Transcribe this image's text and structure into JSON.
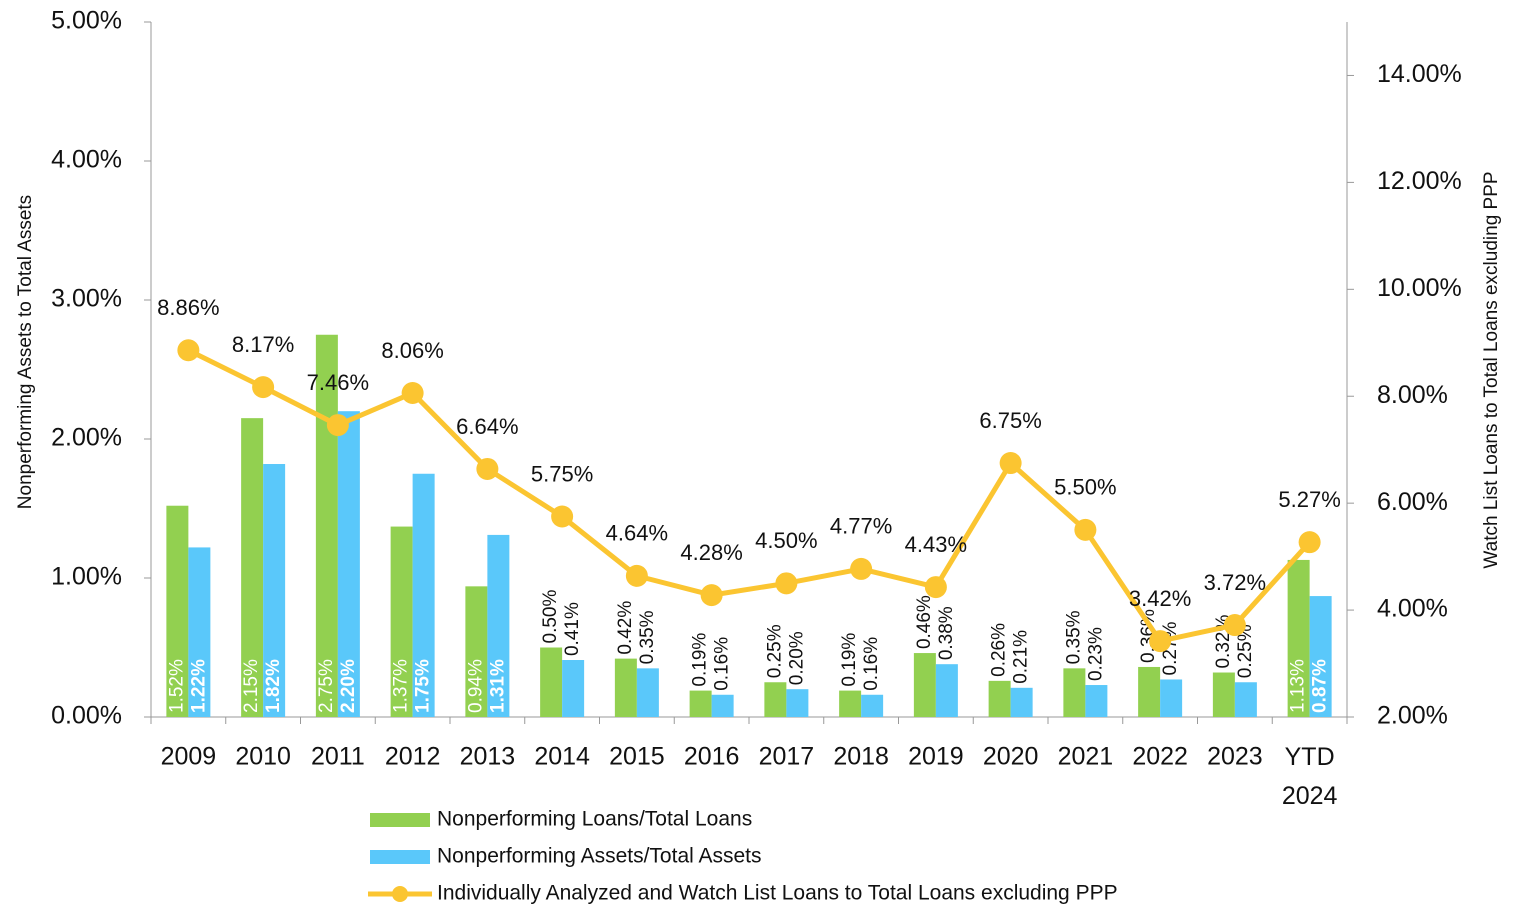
{
  "chart_data": {
    "type": "bar",
    "categories": [
      "2009",
      "2010",
      "2011",
      "2012",
      "2013",
      "2014",
      "2015",
      "2016",
      "2017",
      "2018",
      "2019",
      "2020",
      "2021",
      "2022",
      "2023",
      "YTD 2024"
    ],
    "y_label": "Nonperforming Assets to Total Assets",
    "y2_label": "Watch List Loans to Total Loans excluding PPP",
    "ylim": [
      0,
      5
    ],
    "yticks": [
      {
        "value": 0,
        "label": "0.00%"
      },
      {
        "value": 1,
        "label": "1.00%"
      },
      {
        "value": 2,
        "label": "2.00%"
      },
      {
        "value": 3,
        "label": "3.00%"
      },
      {
        "value": 4,
        "label": "4.00%"
      },
      {
        "value": 5,
        "label": "5.00%"
      }
    ],
    "y2lim": [
      2,
      15
    ],
    "y2ticks": [
      {
        "value": 2,
        "label": "2.00%"
      },
      {
        "value": 4,
        "label": "4.00%"
      },
      {
        "value": 6,
        "label": "6.00%"
      },
      {
        "value": 8,
        "label": "8.00%"
      },
      {
        "value": 10,
        "label": "10.00%"
      },
      {
        "value": 12,
        "label": "12.00%"
      },
      {
        "value": 14,
        "label": "14.00%"
      }
    ],
    "series": [
      {
        "name": "Nonperforming Loans/Total Loans",
        "type": "bar",
        "color": "#92d050",
        "values": [
          1.52,
          2.15,
          2.75,
          1.37,
          0.94,
          0.5,
          0.42,
          0.19,
          0.25,
          0.19,
          0.46,
          0.26,
          0.35,
          0.36,
          0.32,
          1.13
        ],
        "value_labels": [
          "1.52%",
          "2.15%",
          "2.75%",
          "1.37%",
          "0.94%",
          "0.50%",
          "0.42%",
          "0.19%",
          "0.25%",
          "0.19%",
          "0.46%",
          "0.26%",
          "0.35%",
          "0.36%",
          "0.32%",
          "1.13%"
        ]
      },
      {
        "name": "Nonperforming Assets/Total Assets",
        "type": "bar",
        "color": "#5ac8fa",
        "values": [
          1.22,
          1.82,
          2.2,
          1.75,
          1.31,
          0.41,
          0.35,
          0.16,
          0.2,
          0.16,
          0.38,
          0.21,
          0.23,
          0.27,
          0.25,
          0.87
        ],
        "value_labels": [
          "1.22%",
          "1.82%",
          "2.20%",
          "1.75%",
          "1.31%",
          "0.41%",
          "0.35%",
          "0.16%",
          "0.20%",
          "0.16%",
          "0.38%",
          "0.21%",
          "0.23%",
          "0.27%",
          "0.25%",
          "0.87%"
        ]
      },
      {
        "name": "Individually Analyzed and Watch List Loans to Total Loans excluding PPP",
        "type": "line",
        "axis": "y2",
        "color": "#fbc531",
        "values": [
          8.86,
          8.17,
          7.46,
          8.06,
          6.64,
          5.75,
          4.64,
          4.28,
          4.5,
          4.77,
          4.43,
          6.75,
          5.5,
          3.42,
          3.72,
          5.27
        ],
        "value_labels": [
          "8.86%",
          "8.17%",
          "7.46%",
          "8.06%",
          "6.64%",
          "5.75%",
          "4.64%",
          "4.28%",
          "4.50%",
          "4.77%",
          "4.43%",
          "6.75%",
          "5.50%",
          "3.42%",
          "3.72%",
          "5.27%"
        ]
      }
    ]
  }
}
